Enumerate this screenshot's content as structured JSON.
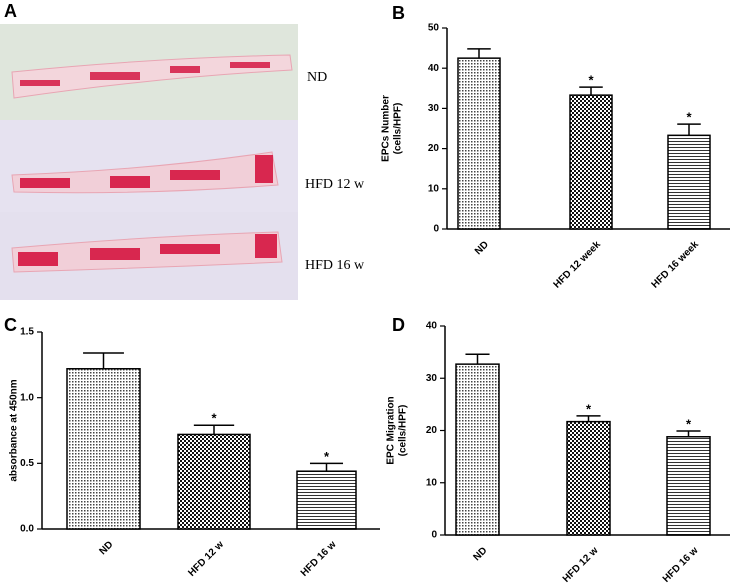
{
  "panel_a": {
    "panel_label": "A",
    "labels": [
      "ND",
      "HFD 12 w",
      "HFD 16 w"
    ]
  },
  "chart_data": [
    {
      "type": "bar",
      "panel_label": "B",
      "ylabel": [
        "EPCs Number",
        "(cells/HPF)"
      ],
      "categories": [
        "ND",
        "HFD 12 week",
        "HFD 16 week"
      ],
      "values": [
        42.5,
        33.3,
        23.3
      ],
      "errors": [
        2.3,
        2.0,
        2.8
      ],
      "annotations": [
        {
          "index": 1,
          "text": "*"
        },
        {
          "index": 2,
          "text": "*"
        }
      ],
      "ylim": [
        0,
        50
      ],
      "yticks": [
        0,
        10,
        20,
        30,
        40,
        50
      ]
    },
    {
      "type": "bar",
      "panel_label": "C",
      "ylabel": [
        "absorbance at 450nm"
      ],
      "categories": [
        "ND",
        "HFD 12 w",
        "HFD 16 w"
      ],
      "values": [
        1.22,
        0.72,
        0.44
      ],
      "errors": [
        0.12,
        0.07,
        0.06
      ],
      "annotations": [
        {
          "index": 1,
          "text": "*"
        },
        {
          "index": 2,
          "text": "*"
        }
      ],
      "ylim": [
        0,
        1.5
      ],
      "yticks": [
        {
          "value": 0,
          "label": "0.0"
        },
        0.5,
        {
          "value": 1,
          "label": "1.0"
        },
        1.5
      ]
    },
    {
      "type": "bar",
      "panel_label": "D",
      "ylabel": [
        "EPC Migration",
        "(cells/HPF)"
      ],
      "categories": [
        "ND",
        "HFD 12 w",
        "HFD 16 w"
      ],
      "values": [
        32.7,
        21.7,
        18.8
      ],
      "errors": [
        1.9,
        1.1,
        1.1
      ],
      "annotations": [
        {
          "index": 1,
          "text": "*"
        },
        {
          "index": 2,
          "text": "*"
        }
      ],
      "ylim": [
        0,
        40
      ],
      "yticks": [
        0,
        10,
        20,
        30,
        40
      ]
    }
  ]
}
